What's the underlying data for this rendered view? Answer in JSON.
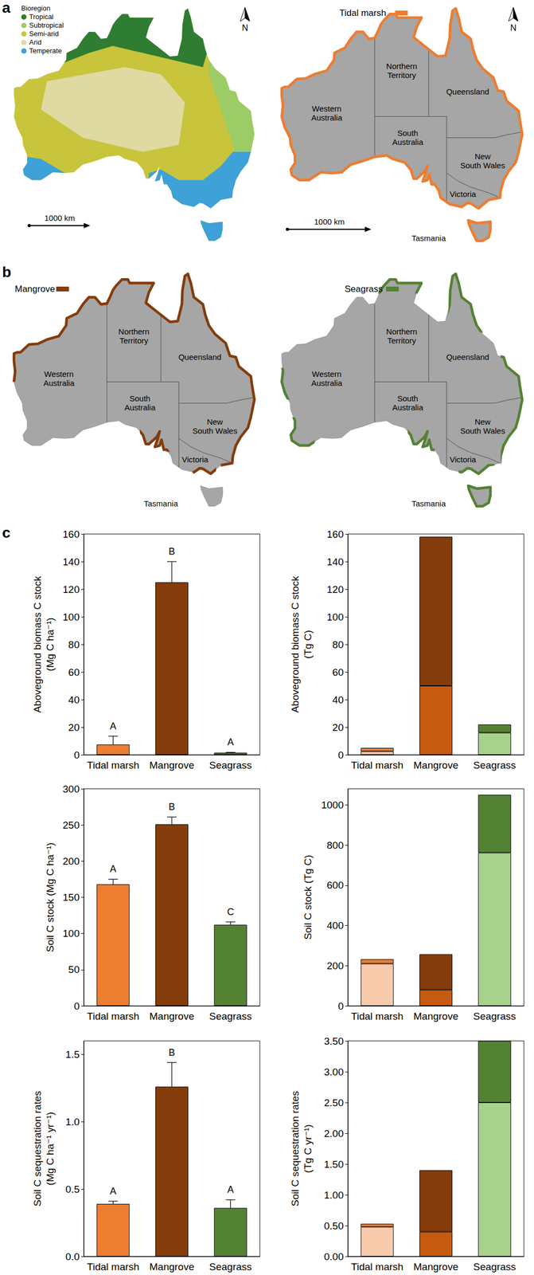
{
  "panels": [
    "a",
    "b",
    "c"
  ],
  "maps": {
    "state_labels": [
      [
        "Western",
        "Australia"
      ],
      [
        "Northern",
        "Territory"
      ],
      [
        "Queensland"
      ],
      [
        "South",
        "Australia"
      ],
      [
        "New",
        "South Wales"
      ],
      [
        "Victoria"
      ],
      [
        "Tasmania"
      ]
    ],
    "bioregion": {
      "legend_title": "Bioregion",
      "legend": [
        {
          "label": "Tropical",
          "color": "#2e7d32"
        },
        {
          "label": "Subtropical",
          "color": "#9ccc65"
        },
        {
          "label": "Semi-arid",
          "color": "#c8c43c"
        },
        {
          "label": "Arid",
          "color": "#dedaa2"
        },
        {
          "label": "Temperate",
          "color": "#3ea1d8"
        }
      ],
      "north": "N",
      "scale_bar": "1000 km"
    },
    "habitats": [
      {
        "label": "Tidal marsh",
        "color": "#ed7d31",
        "north": "N",
        "scale_bar": "1000 km"
      },
      {
        "label": "Mangrove",
        "color": "#843c0c"
      },
      {
        "label": "Seagrass",
        "color": "#548235"
      }
    ]
  },
  "chart_data": [
    {
      "type": "bar",
      "categories": [
        "Tidal marsh",
        "Mangrove",
        "Seagrass"
      ],
      "values": [
        7.5,
        125,
        1.5
      ],
      "errors": [
        6,
        15,
        0.3
      ],
      "sig_letters": [
        "A",
        "B",
        "A"
      ],
      "colors": [
        "#ed7d31",
        "#843c0c",
        "#548235"
      ],
      "ylabel": "Aboveground biomass C stock\n(Mg C ha⁻¹)",
      "ylim": [
        0,
        160
      ],
      "yticks": [
        0,
        20,
        40,
        60,
        80,
        100,
        120,
        140,
        160
      ],
      "grid": false
    },
    {
      "type": "bar",
      "stacked": true,
      "categories": [
        "Tidal marsh",
        "Mangrove",
        "Seagrass"
      ],
      "series": [
        {
          "values": [
            2.5,
            50,
            16
          ],
          "colors": [
            "#f8cbad",
            "#c55a11",
            "#a9d18e"
          ]
        },
        {
          "values": [
            2.5,
            108,
            6
          ],
          "colors": [
            "#ed7d31",
            "#843c0c",
            "#548235"
          ]
        }
      ],
      "ylabel": "Aboveground biomass C stock\n(Tg C)",
      "ylim": [
        0,
        160
      ],
      "yticks": [
        0,
        20,
        40,
        60,
        80,
        100,
        120,
        140,
        160
      ],
      "grid": false
    },
    {
      "type": "bar",
      "categories": [
        "Tidal marsh",
        "Mangrove",
        "Seagrass"
      ],
      "values": [
        168,
        251,
        112
      ],
      "errors": [
        7,
        10,
        4
      ],
      "sig_letters": [
        "A",
        "B",
        "C"
      ],
      "colors": [
        "#ed7d31",
        "#843c0c",
        "#548235"
      ],
      "ylabel": "Soil C stock (Mg C ha⁻¹)",
      "ylim": [
        0,
        300
      ],
      "yticks": [
        0,
        50,
        100,
        150,
        200,
        250,
        300
      ],
      "grid": false
    },
    {
      "type": "bar",
      "stacked": true,
      "categories": [
        "Tidal marsh",
        "Mangrove",
        "Seagrass"
      ],
      "series": [
        {
          "values": [
            210,
            80,
            762
          ],
          "colors": [
            "#f8cbad",
            "#c55a11",
            "#a9d18e"
          ]
        },
        {
          "values": [
            22,
            177,
            288
          ],
          "colors": [
            "#ed7d31",
            "#843c0c",
            "#548235"
          ]
        }
      ],
      "ylabel": "Soil C stock (Tg C)",
      "ylim": [
        0,
        1080
      ],
      "yticks": [
        0,
        200,
        400,
        600,
        800,
        1000
      ],
      "grid": false
    },
    {
      "type": "bar",
      "categories": [
        "Tidal marsh",
        "Mangrove",
        "Seagrass"
      ],
      "values": [
        0.39,
        1.26,
        0.36
      ],
      "errors": [
        0.02,
        0.18,
        0.06
      ],
      "sig_letters": [
        "A",
        "B",
        "A"
      ],
      "colors": [
        "#ed7d31",
        "#843c0c",
        "#548235"
      ],
      "ylabel": "Soil C sequestration rates\n(Mg C ha⁻¹ yr⁻¹)",
      "ylim": [
        0,
        1.6
      ],
      "yticks": [
        {
          "value": 0,
          "label": "0.0"
        },
        {
          "value": 0.5,
          "label": "0.5"
        },
        {
          "value": 1,
          "label": "1.0"
        },
        {
          "value": 1.5,
          "label": "1.5"
        }
      ],
      "grid": false
    },
    {
      "type": "bar",
      "stacked": true,
      "categories": [
        "Tidal marsh",
        "Mangrove",
        "Seagrass"
      ],
      "series": [
        {
          "values": [
            0.48,
            0.4,
            2.5
          ],
          "colors": [
            "#f8cbad",
            "#c55a11",
            "#a9d18e"
          ]
        },
        {
          "values": [
            0.05,
            1.0,
            1.0
          ],
          "colors": [
            "#ed7d31",
            "#843c0c",
            "#548235"
          ]
        }
      ],
      "ylabel": "Soil C sequestration rates\n(Tg C yr⁻¹)",
      "ylim": [
        0,
        3.5
      ],
      "yticks": [
        {
          "value": 0,
          "label": "0.00"
        },
        {
          "value": 0.5,
          "label": "0.50"
        },
        {
          "value": 1,
          "label": "1.00"
        },
        {
          "value": 1.5,
          "label": "1.50"
        },
        {
          "value": 2,
          "label": "2.00"
        },
        {
          "value": 2.5,
          "label": "2.50"
        },
        {
          "value": 3,
          "label": "3.00"
        },
        {
          "value": 3.5,
          "label": "3.50"
        }
      ],
      "grid": false
    }
  ]
}
